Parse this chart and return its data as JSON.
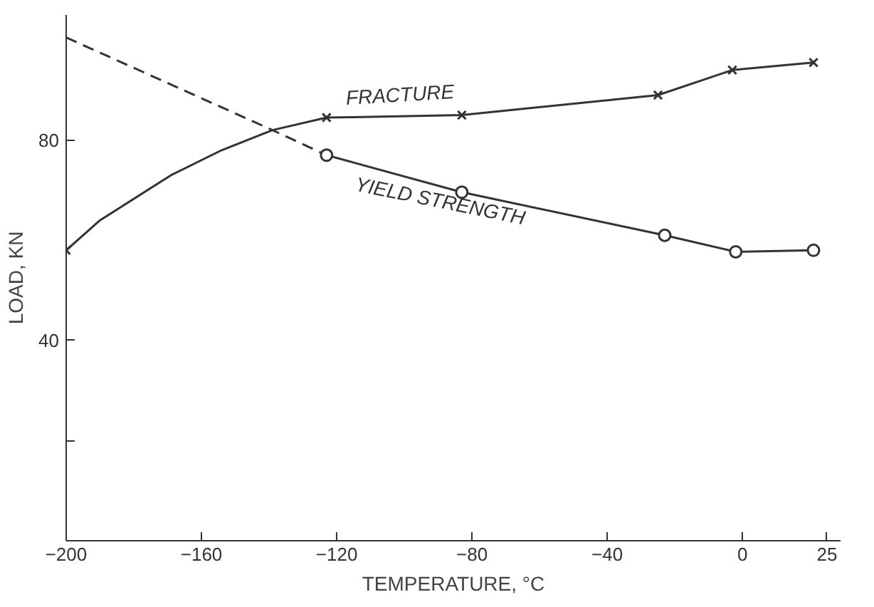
{
  "chart_data": {
    "type": "line",
    "xlabel": "TEMPERATURE, °C",
    "ylabel": "LOAD, KN",
    "xlim": [
      -200,
      29
    ],
    "ylim": [
      0,
      105
    ],
    "xticks": [
      -200,
      -160,
      -120,
      -80,
      -40,
      0,
      25
    ],
    "yticks": [
      {
        "value": 20,
        "label": null
      },
      40,
      80
    ],
    "grid": false,
    "series": [
      {
        "name": "FRACTURE",
        "color": "#333333",
        "line_style": "solid",
        "marker": "none",
        "x": [
          -200,
          -190,
          -169,
          -154,
          -139,
          -123,
          -83,
          -25,
          -3,
          21
        ],
        "values": [
          58,
          64,
          73,
          78,
          82,
          84.5,
          85,
          89,
          94,
          95.5
        ]
      },
      {
        "type": "scatter",
        "color": "#333333",
        "marker": "cross",
        "x": [
          -200,
          -123,
          -83,
          -25,
          -3,
          21
        ],
        "values": [
          58,
          84.5,
          85,
          89,
          94,
          95.5
        ]
      },
      {
        "color": "#333333",
        "line_style": "dashed",
        "marker": "none",
        "x": [
          -200,
          -139,
          -123
        ],
        "values": [
          100.5,
          82,
          77
        ]
      },
      {
        "name": "YIELD STRENGTH",
        "color": "#333333",
        "line_style": "solid",
        "marker": "circle",
        "x": [
          -123,
          -83,
          -23,
          -2,
          21
        ],
        "values": [
          77,
          69.6,
          61,
          57.7,
          58
        ]
      }
    ]
  }
}
